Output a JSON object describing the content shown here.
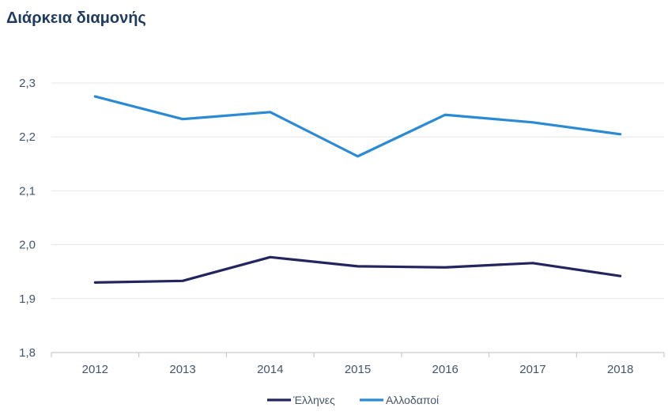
{
  "chart_data": {
    "type": "line",
    "title": "Διάρκεια διαμονής",
    "xlabel": "",
    "ylabel": "",
    "categories": [
      "2012",
      "2013",
      "2014",
      "2015",
      "2016",
      "2017",
      "2018"
    ],
    "ylim": [
      1.8,
      2.3
    ],
    "yticks": [
      1.8,
      1.9,
      2.0,
      2.1,
      2.2,
      2.3
    ],
    "ytick_labels": [
      "1,8",
      "1,9",
      "2,0",
      "2,1",
      "2,2",
      "2,3"
    ],
    "grid": true,
    "legend_position": "bottom",
    "series": [
      {
        "name": "Έλληνες",
        "color": "#23265e",
        "values": [
          1.93,
          1.933,
          1.977,
          1.96,
          1.958,
          1.966,
          1.942
        ]
      },
      {
        "name": "Αλλοδαποί",
        "color": "#2a8ad4",
        "values": [
          2.275,
          2.233,
          2.246,
          2.164,
          2.241,
          2.227,
          2.205
        ]
      }
    ]
  }
}
